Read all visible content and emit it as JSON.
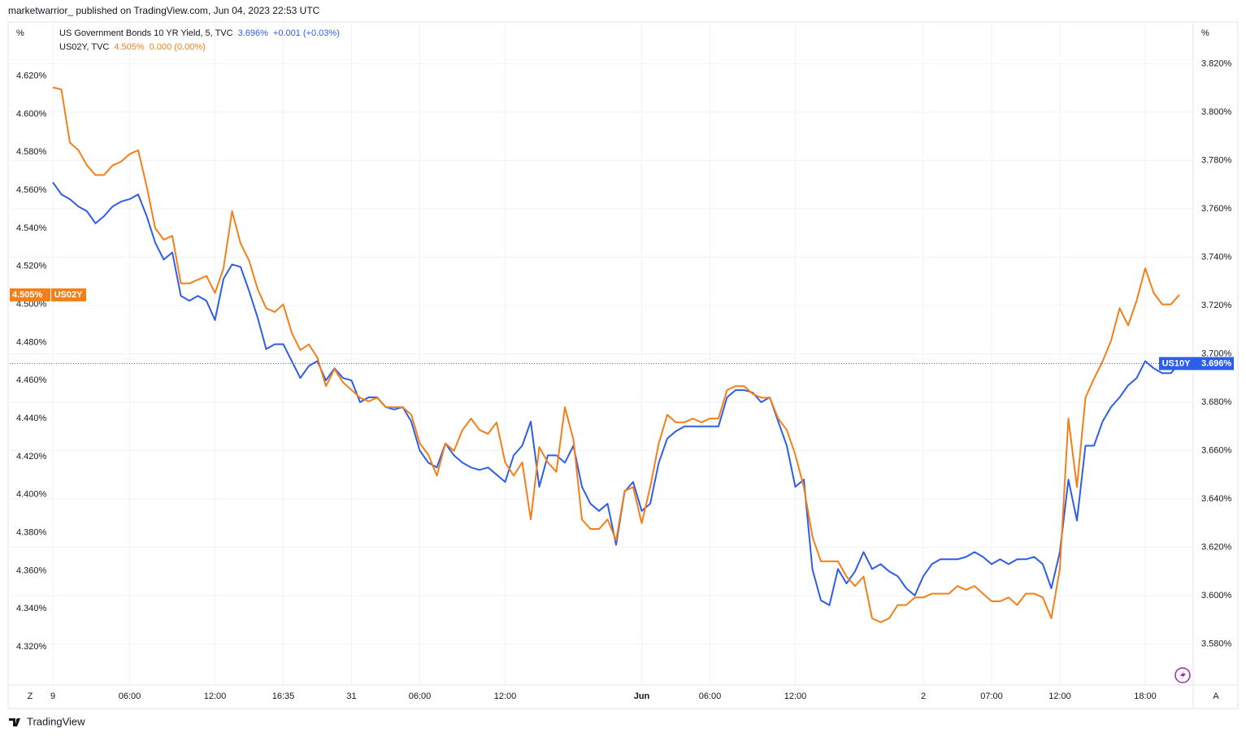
{
  "header": {
    "text": "marketwarrior_ published on TradingView.com, Jun 04, 2023 22:53 UTC"
  },
  "footer": {
    "brand": "TradingView"
  },
  "buttons": {
    "left": "Z",
    "right": "A"
  },
  "chart_data": {
    "type": "line",
    "y_unit": "%",
    "y2_unit": "%",
    "categories": [
      "9",
      null,
      null,
      null,
      null,
      null,
      null,
      null,
      null,
      "06:00",
      null,
      null,
      null,
      null,
      null,
      null,
      null,
      null,
      null,
      "12:00",
      null,
      null,
      null,
      null,
      null,
      null,
      null,
      "16:35",
      null,
      null,
      null,
      null,
      null,
      null,
      null,
      "31",
      null,
      null,
      null,
      null,
      null,
      null,
      null,
      "06:00",
      null,
      null,
      null,
      null,
      null,
      null,
      null,
      null,
      null,
      "12:00",
      null,
      null,
      null,
      null,
      null,
      null,
      null,
      null,
      null,
      null,
      null,
      null,
      null,
      null,
      null,
      "Jun",
      null,
      null,
      null,
      null,
      null,
      null,
      null,
      "06:00",
      null,
      null,
      null,
      null,
      null,
      null,
      null,
      null,
      null,
      "12:00",
      null,
      null,
      null,
      null,
      null,
      null,
      null,
      null,
      null,
      null,
      null,
      null,
      null,
      null,
      "2",
      null,
      null,
      null,
      null,
      null,
      null,
      null,
      "07:00",
      null,
      null,
      null,
      null,
      null,
      null,
      null,
      "12:00",
      null,
      null,
      null,
      null,
      null,
      null,
      null,
      null,
      null,
      "18:00",
      null,
      null,
      null,
      null
    ],
    "series": [
      {
        "name": "US Government Bonds 10 YR Yield, 5, TVC",
        "short_name": "US10Y",
        "last_label": "3.696%",
        "change_label": "+0.001 (+0.03%)",
        "color": "#2e5ee8",
        "axis": "y2",
        "values": [
          3.771,
          3.766,
          3.764,
          3.761,
          3.759,
          3.754,
          3.757,
          3.761,
          3.763,
          3.764,
          3.766,
          3.757,
          3.746,
          3.739,
          3.742,
          3.724,
          3.722,
          3.724,
          3.722,
          3.714,
          3.731,
          3.737,
          3.736,
          3.726,
          3.715,
          3.702,
          3.704,
          3.704,
          3.697,
          3.69,
          3.695,
          3.697,
          3.689,
          3.694,
          3.69,
          3.689,
          3.68,
          3.682,
          3.682,
          3.678,
          3.677,
          3.678,
          3.672,
          3.66,
          3.655,
          3.653,
          3.663,
          3.658,
          3.655,
          3.653,
          3.652,
          3.653,
          3.65,
          3.647,
          3.658,
          3.662,
          3.672,
          3.645,
          3.658,
          3.658,
          3.655,
          3.662,
          3.645,
          3.638,
          3.635,
          3.638,
          3.621,
          3.643,
          3.647,
          3.635,
          3.638,
          3.655,
          3.665,
          3.668,
          3.67,
          3.67,
          3.67,
          3.67,
          3.67,
          3.682,
          3.685,
          3.685,
          3.684,
          3.68,
          3.682,
          3.672,
          3.662,
          3.645,
          3.648,
          3.611,
          3.598,
          3.596,
          3.611,
          3.605,
          3.61,
          3.618,
          3.611,
          3.613,
          3.61,
          3.608,
          3.603,
          3.6,
          3.608,
          3.613,
          3.615,
          3.615,
          3.615,
          3.616,
          3.618,
          3.616,
          3.613,
          3.615,
          3.613,
          3.615,
          3.615,
          3.616,
          3.613,
          3.603,
          3.618,
          3.648,
          3.631,
          3.662,
          3.662,
          3.672,
          3.678,
          3.682,
          3.687,
          3.69,
          3.697,
          3.694,
          3.692,
          3.692,
          3.696
        ]
      },
      {
        "name": "US02Y, TVC",
        "short_name": "US02Y",
        "last_label": "4.505%",
        "change_label": "0.000 (0.00%)",
        "color": "#f57f17",
        "axis": "y",
        "values": [
          4.614,
          4.613,
          4.585,
          4.581,
          4.573,
          4.568,
          4.568,
          4.573,
          4.575,
          4.579,
          4.581,
          4.562,
          4.54,
          4.534,
          4.536,
          4.511,
          4.511,
          4.513,
          4.515,
          4.506,
          4.519,
          4.549,
          4.532,
          4.523,
          4.508,
          4.498,
          4.496,
          4.5,
          4.485,
          4.476,
          4.479,
          4.472,
          4.457,
          4.466,
          4.459,
          4.455,
          4.451,
          4.449,
          4.451,
          4.446,
          4.446,
          4.446,
          4.442,
          4.427,
          4.421,
          4.41,
          4.427,
          4.423,
          4.434,
          4.44,
          4.434,
          4.432,
          4.438,
          4.417,
          4.41,
          4.417,
          4.387,
          4.425,
          4.417,
          4.412,
          4.446,
          4.429,
          4.387,
          4.382,
          4.382,
          4.387,
          4.376,
          4.402,
          4.404,
          4.385,
          4.404,
          4.427,
          4.442,
          4.438,
          4.438,
          4.44,
          4.438,
          4.44,
          4.44,
          4.455,
          4.457,
          4.457,
          4.453,
          4.451,
          4.451,
          4.44,
          4.434,
          4.421,
          4.404,
          4.378,
          4.365,
          4.365,
          4.365,
          4.357,
          4.352,
          4.357,
          4.335,
          4.333,
          4.335,
          4.342,
          4.342,
          4.346,
          4.346,
          4.348,
          4.348,
          4.348,
          4.352,
          4.35,
          4.352,
          4.348,
          4.344,
          4.344,
          4.346,
          4.342,
          4.348,
          4.348,
          4.346,
          4.335,
          4.361,
          4.44,
          4.404,
          4.451,
          4.461,
          4.47,
          4.481,
          4.498,
          4.489,
          4.502,
          4.519,
          4.506,
          4.5,
          4.5,
          4.505
        ]
      }
    ],
    "ylim": [
      4.3,
      4.648
    ],
    "yticks": [
      {
        "value": 4.32,
        "label": "4.320%"
      },
      {
        "value": 4.34,
        "label": "4.340%"
      },
      {
        "value": 4.36,
        "label": "4.360%"
      },
      {
        "value": 4.38,
        "label": "4.380%"
      },
      {
        "value": 4.4,
        "label": "4.400%"
      },
      {
        "value": 4.42,
        "label": "4.420%"
      },
      {
        "value": 4.44,
        "label": "4.440%"
      },
      {
        "value": 4.46,
        "label": "4.460%"
      },
      {
        "value": 4.48,
        "label": "4.480%"
      },
      {
        "value": 4.5,
        "label": "4.500%"
      },
      {
        "value": 4.52,
        "label": "4.520%"
      },
      {
        "value": 4.54,
        "label": "4.540%"
      },
      {
        "value": 4.56,
        "label": "4.560%"
      },
      {
        "value": 4.58,
        "label": "4.580%"
      },
      {
        "value": 4.6,
        "label": "4.600%"
      },
      {
        "value": 4.62,
        "label": "4.620%"
      }
    ],
    "y2lim": [
      3.563,
      3.837
    ],
    "y2ticks": [
      {
        "value": 3.58,
        "label": "3.580%"
      },
      {
        "value": 3.6,
        "label": "3.600%"
      },
      {
        "value": 3.62,
        "label": "3.620%"
      },
      {
        "value": 3.64,
        "label": "3.640%"
      },
      {
        "value": 3.66,
        "label": "3.660%"
      },
      {
        "value": 3.68,
        "label": "3.680%"
      },
      {
        "value": 3.7,
        "label": "3.700%"
      },
      {
        "value": 3.72,
        "label": "3.720%"
      },
      {
        "value": 3.74,
        "label": "3.740%"
      },
      {
        "value": 3.76,
        "label": "3.760%"
      },
      {
        "value": 3.78,
        "label": "3.780%"
      },
      {
        "value": 3.8,
        "label": "3.800%"
      },
      {
        "value": 3.82,
        "label": "3.820%"
      }
    ],
    "grid": true
  }
}
